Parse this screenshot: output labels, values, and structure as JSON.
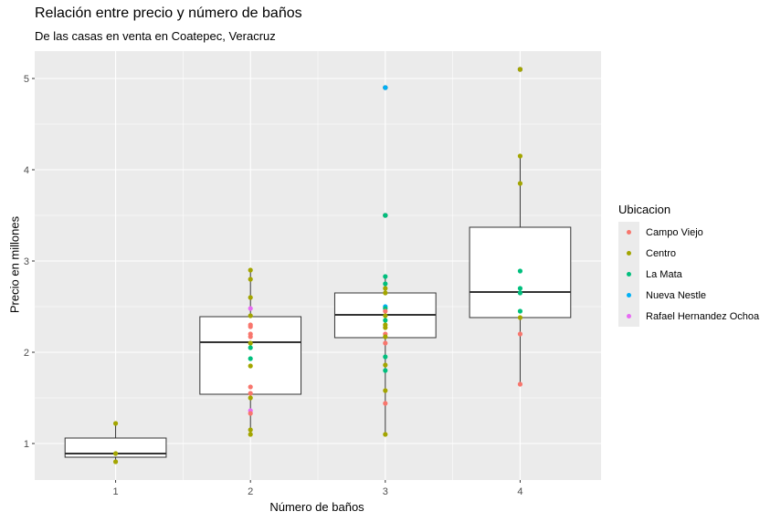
{
  "chart_data": {
    "type": "boxplot",
    "title": "Relación entre precio y número de baños",
    "subtitle": "De las casas en venta en Coatepec, Veracruz",
    "xlabel": "Número de baños",
    "ylabel": "Precio en millones",
    "categories": [
      "1",
      "2",
      "3",
      "4"
    ],
    "ylim": [
      0.6,
      5.3
    ],
    "yticks": [
      1,
      2,
      3,
      4,
      5
    ],
    "grid": true,
    "legend": {
      "title": "Ubicacion",
      "placement": "right",
      "entries": [
        "Campo Viejo",
        "Centro",
        "La Mata",
        "Nueva Nestle",
        "Rafael Hernandez Ochoa"
      ]
    },
    "colors": {
      "Campo Viejo": "#F8766D",
      "Centro": "#A3A500",
      "La Mata": "#00BF7D",
      "Nueva Nestle": "#00B0F6",
      "Rafael Hernandez Ochoa": "#E76BF3"
    },
    "boxes": [
      {
        "category": "1",
        "min": 0.8,
        "q1": 0.85,
        "median": 0.89,
        "q3": 1.06,
        "max": 1.22
      },
      {
        "category": "2",
        "min": 1.1,
        "q1": 1.54,
        "median": 2.11,
        "q3": 2.39,
        "max": 2.9
      },
      {
        "category": "3",
        "min": 1.1,
        "q1": 2.16,
        "median": 2.41,
        "q3": 2.65,
        "max": 2.83
      },
      {
        "category": "4",
        "min": 1.65,
        "q1": 2.38,
        "median": 2.66,
        "q3": 3.37,
        "max": 4.15
      }
    ],
    "outliers": [
      {
        "category": "3",
        "value": 3.5
      },
      {
        "category": "3",
        "value": 4.9
      },
      {
        "category": "4",
        "value": 5.1
      }
    ],
    "points": [
      {
        "x": "1",
        "y": 1.22,
        "ubicacion": "Centro"
      },
      {
        "x": "1",
        "y": 0.89,
        "ubicacion": "Centro"
      },
      {
        "x": "1",
        "y": 0.8,
        "ubicacion": "Centro"
      },
      {
        "x": "2",
        "y": 2.9,
        "ubicacion": "Centro"
      },
      {
        "x": "2",
        "y": 2.8,
        "ubicacion": "Centro"
      },
      {
        "x": "2",
        "y": 2.6,
        "ubicacion": "Centro"
      },
      {
        "x": "2",
        "y": 2.48,
        "ubicacion": "Rafael Hernandez Ochoa"
      },
      {
        "x": "2",
        "y": 2.4,
        "ubicacion": "Centro"
      },
      {
        "x": "2",
        "y": 2.3,
        "ubicacion": "Campo Viejo"
      },
      {
        "x": "2",
        "y": 2.28,
        "ubicacion": "Campo Viejo"
      },
      {
        "x": "2",
        "y": 2.2,
        "ubicacion": "Campo Viejo"
      },
      {
        "x": "2",
        "y": 2.17,
        "ubicacion": "Campo Viejo"
      },
      {
        "x": "2",
        "y": 2.1,
        "ubicacion": "Centro"
      },
      {
        "x": "2",
        "y": 2.05,
        "ubicacion": "La Mata"
      },
      {
        "x": "2",
        "y": 1.93,
        "ubicacion": "La Mata"
      },
      {
        "x": "2",
        "y": 1.85,
        "ubicacion": "Centro"
      },
      {
        "x": "2",
        "y": 1.62,
        "ubicacion": "Campo Viejo"
      },
      {
        "x": "2",
        "y": 1.55,
        "ubicacion": "Campo Viejo"
      },
      {
        "x": "2",
        "y": 1.5,
        "ubicacion": "Centro"
      },
      {
        "x": "2",
        "y": 1.36,
        "ubicacion": "Rafael Hernandez Ochoa"
      },
      {
        "x": "2",
        "y": 1.33,
        "ubicacion": "Campo Viejo"
      },
      {
        "x": "2",
        "y": 1.15,
        "ubicacion": "Centro"
      },
      {
        "x": "2",
        "y": 1.1,
        "ubicacion": "Centro"
      },
      {
        "x": "3",
        "y": 4.9,
        "ubicacion": "Nueva Nestle"
      },
      {
        "x": "3",
        "y": 3.5,
        "ubicacion": "La Mata"
      },
      {
        "x": "3",
        "y": 2.83,
        "ubicacion": "La Mata"
      },
      {
        "x": "3",
        "y": 2.75,
        "ubicacion": "La Mata"
      },
      {
        "x": "3",
        "y": 2.7,
        "ubicacion": "Centro"
      },
      {
        "x": "3",
        "y": 2.65,
        "ubicacion": "Centro"
      },
      {
        "x": "3",
        "y": 2.5,
        "ubicacion": "Nueva Nestle"
      },
      {
        "x": "3",
        "y": 2.48,
        "ubicacion": "La Mata"
      },
      {
        "x": "3",
        "y": 2.45,
        "ubicacion": "Campo Viejo"
      },
      {
        "x": "3",
        "y": 2.4,
        "ubicacion": "Centro"
      },
      {
        "x": "3",
        "y": 2.35,
        "ubicacion": "La Mata"
      },
      {
        "x": "3",
        "y": 2.3,
        "ubicacion": "Centro"
      },
      {
        "x": "3",
        "y": 2.27,
        "ubicacion": "Centro"
      },
      {
        "x": "3",
        "y": 2.2,
        "ubicacion": "Campo Viejo"
      },
      {
        "x": "3",
        "y": 2.17,
        "ubicacion": "Centro"
      },
      {
        "x": "3",
        "y": 2.1,
        "ubicacion": "Campo Viejo"
      },
      {
        "x": "3",
        "y": 1.95,
        "ubicacion": "La Mata"
      },
      {
        "x": "3",
        "y": 1.86,
        "ubicacion": "Centro"
      },
      {
        "x": "3",
        "y": 1.8,
        "ubicacion": "La Mata"
      },
      {
        "x": "3",
        "y": 1.58,
        "ubicacion": "Centro"
      },
      {
        "x": "3",
        "y": 1.44,
        "ubicacion": "Campo Viejo"
      },
      {
        "x": "3",
        "y": 1.1,
        "ubicacion": "Centro"
      },
      {
        "x": "4",
        "y": 5.1,
        "ubicacion": "Centro"
      },
      {
        "x": "4",
        "y": 4.15,
        "ubicacion": "Centro"
      },
      {
        "x": "4",
        "y": 3.85,
        "ubicacion": "Centro"
      },
      {
        "x": "4",
        "y": 2.89,
        "ubicacion": "La Mata"
      },
      {
        "x": "4",
        "y": 2.7,
        "ubicacion": "La Mata"
      },
      {
        "x": "4",
        "y": 2.65,
        "ubicacion": "La Mata"
      },
      {
        "x": "4",
        "y": 2.45,
        "ubicacion": "La Mata"
      },
      {
        "x": "4",
        "y": 2.38,
        "ubicacion": "Centro"
      },
      {
        "x": "4",
        "y": 2.2,
        "ubicacion": "Campo Viejo"
      },
      {
        "x": "4",
        "y": 1.65,
        "ubicacion": "Campo Viejo"
      }
    ]
  }
}
